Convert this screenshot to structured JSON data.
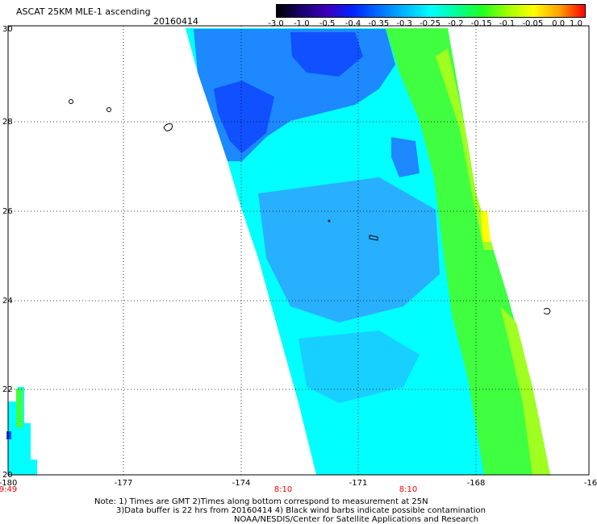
{
  "title": "ASCAT 25KM MLE-1 ascending",
  "date": "20160414",
  "colorbar": {
    "labels": [
      "-3.0",
      "-1.0",
      "-0.5",
      "-0.4",
      "-0.35",
      "-0.3",
      "-0.25",
      "-0.2",
      "-0.15",
      "-0.1",
      "-0.05",
      "0.0",
      "1.0"
    ],
    "colors": [
      "#000000",
      "#1a0070",
      "#3a00c0",
      "#0024ff",
      "#0070ff",
      "#00b8ff",
      "#00ffff",
      "#00ff9a",
      "#20ff20",
      "#a0ff00",
      "#ffff00",
      "#ffa000",
      "#ff0000"
    ]
  },
  "axes": {
    "x_ticks": [
      "-180",
      "-177",
      "-174",
      "-171",
      "-168",
      "-16"
    ],
    "y_ticks": [
      "30",
      "28",
      "26",
      "24",
      "22",
      "20"
    ],
    "time_labels": [
      "9:49",
      "8:10",
      "8:10"
    ],
    "time_color": "#ff0000"
  },
  "notes": {
    "line1": "Note: 1) Times are GMT 2)Times along bottom correspond to measurement at 25N",
    "line2": "3)Data buffer is 22 hrs from 20160414 4) Black wind barbs indicate possible contamination",
    "line3": "NOAA/NESDIS/Center for Satellite Applications and Research"
  },
  "swath_colors": {
    "blue": "#1050ff",
    "mid_blue": "#1e88ff",
    "cyan": "#00ffff",
    "aqua": "#00e6e6",
    "green": "#40ff40",
    "lime": "#a0ff20",
    "yellow": "#ffff00"
  }
}
